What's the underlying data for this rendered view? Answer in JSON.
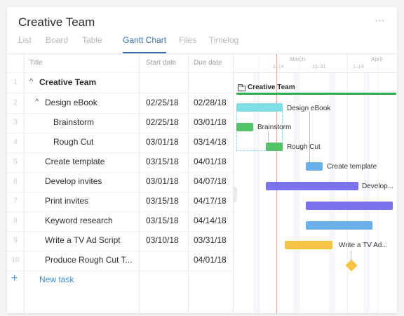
{
  "header": {
    "title": "Creative Team",
    "more_icon": "⋯"
  },
  "tabs": [
    {
      "label": "List"
    },
    {
      "label": "Board"
    },
    {
      "label": "Table"
    },
    {
      "label": "Gantt Chart"
    },
    {
      "label": "Files"
    },
    {
      "label": "Timelog"
    }
  ],
  "columns": {
    "title": "Title",
    "start": "Start date",
    "due": "Due date"
  },
  "rows": [
    {
      "num": "1",
      "caret": "^",
      "name": "Creative Team",
      "start": "",
      "due": ""
    },
    {
      "num": "2",
      "caret": "^",
      "name": "Design eBook",
      "start": "02/25/18",
      "due": "02/28/18"
    },
    {
      "num": "3",
      "caret": "",
      "name": "Brainstorm",
      "start": "02/25/18",
      "due": "03/01/18"
    },
    {
      "num": "4",
      "caret": "",
      "name": "Rough Cut",
      "start": "03/01/18",
      "due": "03/14/18"
    },
    {
      "num": "5",
      "caret": "",
      "name": "Create template",
      "start": "03/15/18",
      "due": "04/01/18"
    },
    {
      "num": "6",
      "caret": "",
      "name": "Develop invites",
      "start": "03/01/18",
      "due": "04/07/18"
    },
    {
      "num": "7",
      "caret": "",
      "name": "Print invites",
      "start": "03/15/18",
      "due": "04/17/18"
    },
    {
      "num": "8",
      "caret": "",
      "name": "Keyword research",
      "start": "03/15/18",
      "due": "04/14/18"
    },
    {
      "num": "9",
      "caret": "",
      "name": "Write a TV Ad Script",
      "start": "03/10/18",
      "due": "03/31/18"
    },
    {
      "num": "10",
      "caret": "",
      "name": "Produce Rough Cut T...",
      "start": "",
      "due": "04/01/18"
    }
  ],
  "new_task": {
    "plus": "+",
    "label": "New task"
  },
  "gantt": {
    "months": [
      "March",
      "April"
    ],
    "weeks": [
      "1–14",
      "15–31",
      "1–14"
    ],
    "group_label": "Creative Team",
    "bar_labels": {
      "design": "Design eBook",
      "brainstorm": "Brainstorm",
      "roughcut": "Rough Cut",
      "template": "Create template",
      "develop": "Develop...",
      "tvad": "Write a TV Ad..."
    },
    "colors": {
      "group": "#2bb04a",
      "design": "#7fdfe6",
      "green": "#52c467",
      "blue": "#6aaeea",
      "purple": "#7a72ee",
      "yellow": "#f6c343",
      "today": "#f2a0a0"
    }
  }
}
